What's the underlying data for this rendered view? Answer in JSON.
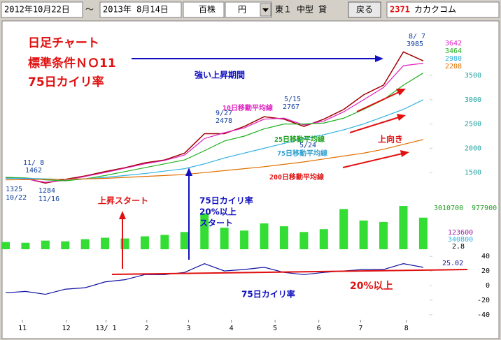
{
  "toolbar": {
    "from": "2012年10月22日",
    "sep": "～",
    "to": "2013年 8月14日",
    "unit": "百株",
    "currency": "円",
    "market": "東１",
    "size": "中型",
    "lend": "貸",
    "back": "戻る",
    "code": "2371",
    "name": "カカクコム"
  },
  "annotations": [
    "日足チャート",
    "標準条件ＮＯ11",
    "75日カイリ率",
    "強い上昇期間",
    "上向き",
    "上昇スタート",
    "75日カイリ率",
    "20%以上",
    "スタート",
    "20%以上",
    "75日カイリ率",
    "11/ 8",
    "1462",
    "1325",
    "10/22",
    "1284",
    "11/16",
    "9/27",
    "2478",
    "5/15",
    "2767",
    "5/24",
    "8/ 7",
    "3985",
    "3642",
    "3464",
    "2980",
    "2208",
    "3010700",
    "977900",
    "123600",
    "340800",
    "2.8",
    "25.02"
  ],
  "chart_data": [
    {
      "type": "line",
      "x": [
        0,
        2,
        4,
        6,
        8,
        10,
        12,
        14,
        16,
        18,
        20,
        22,
        24,
        26,
        28,
        30,
        32,
        34,
        36,
        38,
        40,
        42
      ],
      "xlim": [
        0,
        42.5
      ],
      "xticks": [
        {
          "value": 1.7,
          "label": "11"
        },
        {
          "value": 6.1,
          "label": "12"
        },
        {
          "value": 10.1,
          "label": "13/ 1"
        },
        {
          "value": 14.2,
          "label": "2"
        },
        {
          "value": 18.4,
          "label": "3"
        },
        {
          "value": 22.7,
          "label": "4"
        },
        {
          "value": 27.1,
          "label": "5"
        },
        {
          "value": 31.5,
          "label": "6"
        },
        {
          "value": 35.7,
          "label": "7"
        },
        {
          "value": 40.3,
          "label": "8"
        }
      ],
      "ylim": [
        1100,
        4550
      ],
      "yticks": [
        1500,
        2000,
        2500,
        3000,
        3500
      ],
      "series": [
        {
          "color": "#a00000",
          "values": [
            1400,
            1380,
            1284,
            1360,
            1430,
            1520,
            1600,
            1700,
            1760,
            1900,
            2300,
            2300,
            2450,
            2650,
            2600,
            2450,
            2600,
            2800,
            3100,
            3300,
            3985,
            3800
          ]
        },
        {
          "name": "10日移動平均線",
          "color": "#e020c0",
          "values": [
            1400,
            1370,
            1300,
            1340,
            1420,
            1500,
            1590,
            1680,
            1750,
            1860,
            2200,
            2320,
            2420,
            2600,
            2620,
            2480,
            2560,
            2750,
            3000,
            3250,
            3700,
            3750
          ]
        },
        {
          "name": "25日移動平均線",
          "color": "#20b020",
          "values": [
            1400,
            1390,
            1350,
            1330,
            1370,
            1440,
            1520,
            1600,
            1680,
            1760,
            1950,
            2150,
            2250,
            2400,
            2500,
            2500,
            2520,
            2620,
            2800,
            3000,
            3300,
            3550
          ]
        },
        {
          "name": "75日移動平均線",
          "color": "#30b0e0",
          "values": [
            1380,
            1380,
            1370,
            1360,
            1370,
            1400,
            1440,
            1480,
            1530,
            1580,
            1680,
            1800,
            1900,
            2000,
            2100,
            2200,
            2280,
            2380,
            2500,
            2650,
            2800,
            3000
          ]
        },
        {
          "name": "200日移動平均線",
          "color": "#e07000",
          "values": [
            1350,
            1355,
            1360,
            1365,
            1370,
            1380,
            1400,
            1420,
            1440,
            1460,
            1500,
            1540,
            1580,
            1620,
            1670,
            1720,
            1780,
            1840,
            1900,
            1980,
            2080,
            2180
          ]
        }
      ]
    },
    {
      "type": "bar",
      "x": [
        0,
        2,
        4,
        6,
        8,
        10,
        12,
        14,
        16,
        18,
        20,
        22,
        24,
        26,
        28,
        30,
        32,
        34,
        36,
        38,
        40,
        42
      ],
      "xlim": [
        0,
        42.5
      ],
      "ylim": [
        0,
        3500000
      ],
      "color": "#33dd33",
      "values": [
        500000,
        450000,
        600000,
        550000,
        700000,
        800000,
        750000,
        900000,
        1000000,
        1200000,
        2500000,
        1500000,
        1300000,
        1800000,
        1600000,
        1200000,
        1400000,
        2800000,
        2000000,
        1900000,
        3010700,
        2200000
      ]
    },
    {
      "type": "line",
      "x": [
        0,
        2,
        4,
        6,
        8,
        10,
        12,
        14,
        16,
        18,
        20,
        22,
        24,
        26,
        28,
        30,
        32,
        34,
        36,
        38,
        40,
        42
      ],
      "xlim": [
        0,
        42.5
      ],
      "ylim": [
        -45,
        45
      ],
      "yticks": [
        40,
        20,
        0,
        -20,
        -40
      ],
      "series": [
        {
          "color": "#1010a0",
          "values": [
            -10,
            -8,
            -12,
            -5,
            -3,
            5,
            8,
            15,
            15,
            18,
            30,
            20,
            22,
            25,
            18,
            15,
            18,
            20,
            22,
            22,
            30,
            25.02
          ]
        }
      ]
    }
  ]
}
